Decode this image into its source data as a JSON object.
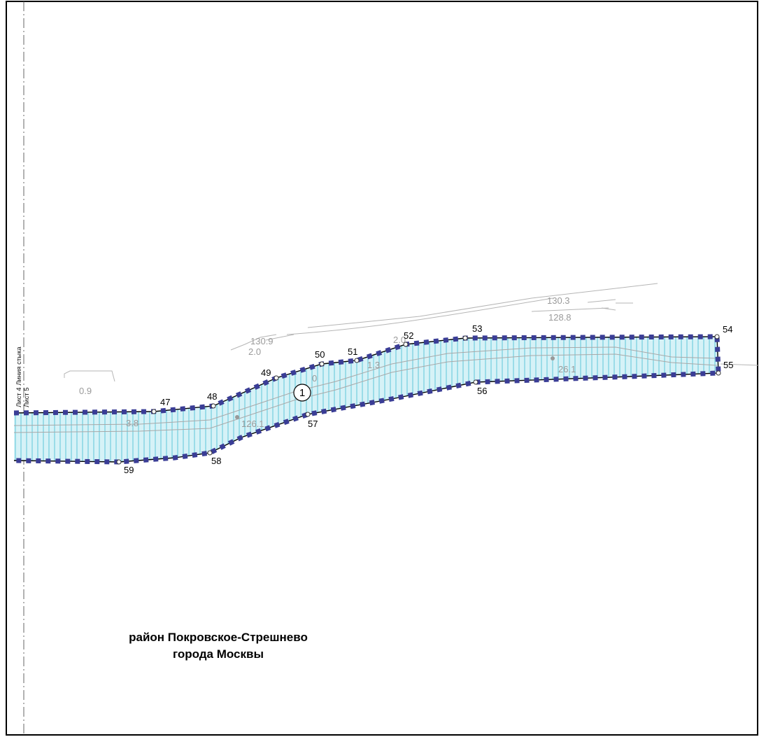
{
  "sheet_labels": {
    "junction_line": "Лист 4 Линия стыка",
    "sheet_5": "Лист 5"
  },
  "zone_number": "1",
  "points": [
    {
      "id": "47"
    },
    {
      "id": "48"
    },
    {
      "id": "49"
    },
    {
      "id": "50"
    },
    {
      "id": "51"
    },
    {
      "id": "52"
    },
    {
      "id": "53"
    },
    {
      "id": "54"
    },
    {
      "id": "55"
    },
    {
      "id": "56"
    },
    {
      "id": "57"
    },
    {
      "id": "58"
    },
    {
      "id": "59"
    }
  ],
  "elevations": [
    "0.9",
    "2.0",
    "130.9",
    "130.3",
    "128.8",
    "2.0",
    "1.3",
    "0",
    "3.8",
    "126.1",
    "26.1"
  ],
  "district_label": {
    "line1": "район Покровское-Стрешнево",
    "line2": "города Москвы"
  },
  "colors": {
    "boundary": "#3a3d96",
    "hatch": "#5ec7da",
    "hatch_fill": "#d6f2f7",
    "topo_lines": "#b5b5b5",
    "frame": "#000000"
  }
}
